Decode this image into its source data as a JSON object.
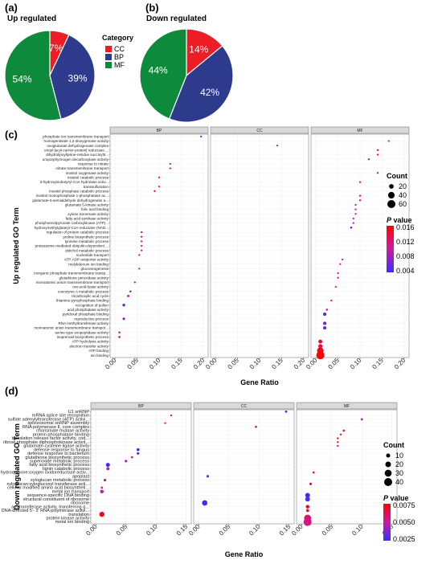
{
  "panels": {
    "a": {
      "label": "(a)",
      "title": "Up regulated"
    },
    "b": {
      "label": "(b)",
      "title": "Down regulated"
    },
    "c": {
      "label": "(c)"
    },
    "d": {
      "label": "(d)"
    }
  },
  "legend_category": {
    "title": "Category",
    "items": [
      {
        "label": "CC",
        "color": "#ee1c25"
      },
      {
        "label": "BP",
        "color": "#2e3a8c"
      },
      {
        "label": "MF",
        "color": "#0e8a3c"
      }
    ]
  },
  "chart_data": [
    {
      "type": "pie",
      "title": "Up regulated",
      "slices": [
        {
          "label": "CC",
          "value": 7,
          "text": "7%"
        },
        {
          "label": "BP",
          "value": 39,
          "text": "39%"
        },
        {
          "label": "MF",
          "value": 54,
          "text": "54%"
        }
      ]
    },
    {
      "type": "pie",
      "title": "Down regulated",
      "slices": [
        {
          "label": "CC",
          "value": 14,
          "text": "14%"
        },
        {
          "label": "BP",
          "value": 42,
          "text": "42%"
        },
        {
          "label": "MF",
          "value": 44,
          "text": "44%"
        }
      ]
    },
    {
      "type": "scatter",
      "ylabel": "Up regulated GO Term",
      "xlabel": "Gene Ratio",
      "facets": [
        "BP",
        "CC",
        "MF"
      ],
      "xlim": [
        0,
        0.2
      ],
      "xticks": [
        "0.00",
        "0.05",
        "0.10",
        "0.15",
        "0.20"
      ],
      "size_legend": {
        "title": "Count",
        "values": [
          20,
          40,
          60
        ]
      },
      "color_legend": {
        "title_bold": "P",
        "title_rest": " value",
        "ticks": [
          "0.016",
          "0.012",
          "0.008",
          "0.004"
        ],
        "range": [
          0.001,
          0.017
        ]
      },
      "terms": [
        "phosphate ion transmembrane transport",
        "homogentisate 1,2-dioxygenase activity",
        "oxoglutarate dehydrogenase complex",
        "enoyl-[acyl-carrier-protein] reductase ...",
        "dihydrolipoyllysine-residue succinyltr...",
        "uroporphyrinogen decarboxylase activity",
        "response to nitrate",
        "nitrate transmembrane transport",
        "inositol oxygenase activity",
        "inositol catabolic process",
        "3-hydroxyisobutyryl-CoA hydrolase activ...",
        "transsulfuration",
        "inositol phosphate catabolic process",
        "inositol monophosphate 1-phosphatase ac...",
        "glutamate-5-semialdehyde dehydrogenase a...",
        "glutamate 5-kinase activity",
        "folic acid binding",
        "xylose isomerase activity",
        "fatty acid synthase activity",
        "phosphoenolpyruvate carboxykinase (ATP)...",
        "hydroxymethylglutaryl-CoA reductase (NAD...",
        "regulation of protein catabolic process",
        "proline biosynthetic process",
        "tyrosine metabolic process",
        "proteasome-mediated ubiquitin-dependent ...",
        "dolichol metabolic process",
        "nucleotide transport",
        "ATP:ADP antiporter activity",
        "molybdenum ion binding",
        "gluconeogenesis",
        "inorganic phosphate transmembrane transp...",
        "glutathione peroxidase activity",
        "monoatomic anion transmembrane transport",
        "oxo-acid-lyase activity",
        "coenzyme A metabolic process",
        "tricarboxylic acid cycle",
        "thiamine pyrophosphate binding",
        "recognition of pollen",
        "acid phosphatase activity",
        "pyridoxal phosphate binding",
        "reproductive process",
        "RNA methyltransferase activity",
        "monoatomic anion transmembrane transpor...",
        "serine-type exopeptidase activity",
        "isoprenoid biosynthetic process",
        "ATP hydrolysis activity",
        "electron transfer activity",
        "ATP binding",
        "ion binding"
      ],
      "points": [
        {
          "facet": "BP",
          "term": 0,
          "x": 0.195,
          "count": 3,
          "p": 0.002
        },
        {
          "facet": "MF",
          "term": 1,
          "x": 0.165,
          "count": 3,
          "p": 0.011
        },
        {
          "facet": "CC",
          "term": 2,
          "x": 0.14,
          "count": 3,
          "p": 0.013
        },
        {
          "facet": "MF",
          "term": 3,
          "x": 0.14,
          "count": 3,
          "p": 0.015
        },
        {
          "facet": "MF",
          "term": 4,
          "x": 0.14,
          "count": 3,
          "p": 0.015
        },
        {
          "facet": "MF",
          "term": 5,
          "x": 0.12,
          "count": 3,
          "p": 0.014
        },
        {
          "facet": "BP",
          "term": 6,
          "x": 0.125,
          "count": 3,
          "p": 0.012
        },
        {
          "facet": "BP",
          "term": 7,
          "x": 0.125,
          "count": 3,
          "p": 0.012
        },
        {
          "facet": "MF",
          "term": 8,
          "x": 0.14,
          "count": 3,
          "p": 0.004
        },
        {
          "facet": "BP",
          "term": 9,
          "x": 0.1,
          "count": 3,
          "p": 0.011
        },
        {
          "facet": "MF",
          "term": 10,
          "x": 0.1,
          "count": 3,
          "p": 0.014
        },
        {
          "facet": "BP",
          "term": 11,
          "x": 0.1,
          "count": 3,
          "p": 0.011
        },
        {
          "facet": "BP",
          "term": 12,
          "x": 0.09,
          "count": 3,
          "p": 0.015
        },
        {
          "facet": "MF",
          "term": 13,
          "x": 0.1,
          "count": 3,
          "p": 0.015
        },
        {
          "facet": "MF",
          "term": 14,
          "x": 0.1,
          "count": 3,
          "p": 0.013
        },
        {
          "facet": "MF",
          "term": 15,
          "x": 0.09,
          "count": 3,
          "p": 0.011
        },
        {
          "facet": "MF",
          "term": 16,
          "x": 0.09,
          "count": 3,
          "p": 0.01
        },
        {
          "facet": "MF",
          "term": 17,
          "x": 0.09,
          "count": 3,
          "p": 0.009
        },
        {
          "facet": "MF",
          "term": 18,
          "x": 0.085,
          "count": 3,
          "p": 0.008
        },
        {
          "facet": "MF",
          "term": 19,
          "x": 0.085,
          "count": 3,
          "p": 0.007
        },
        {
          "facet": "MF",
          "term": 20,
          "x": 0.08,
          "count": 4,
          "p": 0.003
        },
        {
          "facet": "BP",
          "term": 21,
          "x": 0.06,
          "count": 3,
          "p": 0.014
        },
        {
          "facet": "BP",
          "term": 22,
          "x": 0.06,
          "count": 3,
          "p": 0.013
        },
        {
          "facet": "BP",
          "term": 23,
          "x": 0.06,
          "count": 3,
          "p": 0.012
        },
        {
          "facet": "BP",
          "term": 24,
          "x": 0.06,
          "count": 3,
          "p": 0.011
        },
        {
          "facet": "BP",
          "term": 25,
          "x": 0.06,
          "count": 3,
          "p": 0.009
        },
        {
          "facet": "BP",
          "term": 26,
          "x": 0.055,
          "count": 3,
          "p": 0.008
        },
        {
          "facet": "MF",
          "term": 27,
          "x": 0.06,
          "count": 3,
          "p": 0.008
        },
        {
          "facet": "MF",
          "term": 28,
          "x": 0.055,
          "count": 3,
          "p": 0.01
        },
        {
          "facet": "BP",
          "term": 29,
          "x": 0.055,
          "count": 3,
          "p": 0.011
        },
        {
          "facet": "MF",
          "term": 30,
          "x": 0.05,
          "count": 3,
          "p": 0.012
        },
        {
          "facet": "MF",
          "term": 31,
          "x": 0.05,
          "count": 3,
          "p": 0.011
        },
        {
          "facet": "BP",
          "term": 32,
          "x": 0.045,
          "count": 3,
          "p": 0.012
        },
        {
          "facet": "MF",
          "term": 33,
          "x": 0.045,
          "count": 3,
          "p": 0.013
        },
        {
          "facet": "BP",
          "term": 34,
          "x": 0.035,
          "count": 4,
          "p": 0.006
        },
        {
          "facet": "BP",
          "term": 35,
          "x": 0.03,
          "count": 5,
          "p": 0.008
        },
        {
          "facet": "MF",
          "term": 36,
          "x": 0.035,
          "count": 3,
          "p": 0.014
        },
        {
          "facet": "BP",
          "term": 37,
          "x": 0.02,
          "count": 7,
          "p": 0.003
        },
        {
          "facet": "MF",
          "term": 38,
          "x": 0.025,
          "count": 4,
          "p": 0.011
        },
        {
          "facet": "MF",
          "term": 39,
          "x": 0.02,
          "count": 10,
          "p": 0.002
        },
        {
          "facet": "BP",
          "term": 40,
          "x": 0.02,
          "count": 6,
          "p": 0.006
        },
        {
          "facet": "MF",
          "term": 41,
          "x": 0.02,
          "count": 10,
          "p": 0.004
        },
        {
          "facet": "MF",
          "term": 42,
          "x": 0.02,
          "count": 10,
          "p": 0.003
        },
        {
          "facet": "BP",
          "term": 43,
          "x": 0.01,
          "count": 4,
          "p": 0.009
        },
        {
          "facet": "BP",
          "term": 44,
          "x": 0.01,
          "count": 4,
          "p": 0.013
        },
        {
          "facet": "MF",
          "term": 45,
          "x": 0.01,
          "count": 14,
          "p": 0.015
        },
        {
          "facet": "MF",
          "term": 46,
          "x": 0.01,
          "count": 16,
          "p": 0.014
        },
        {
          "facet": "MF",
          "term": 47,
          "x": 0.01,
          "count": 40,
          "p": 0.016
        },
        {
          "facet": "MF",
          "term": 48,
          "x": 0.01,
          "count": 60,
          "p": 0.017
        }
      ]
    },
    {
      "type": "scatter",
      "ylabel": "Down regulated GO Term",
      "xlabel": "Gene Ratio",
      "facets": [
        "BP",
        "CC",
        "MF"
      ],
      "xlim": [
        0,
        0.15
      ],
      "xticks": [
        "0.00",
        "0.05",
        "0.10",
        "0.15"
      ],
      "size_legend": {
        "title": "Count",
        "values": [
          10,
          20,
          30,
          40
        ]
      },
      "color_legend": {
        "title_bold": "P",
        "title_rest": " value",
        "ticks": [
          "0.0075",
          "0.0050",
          "0.0025"
        ],
        "range": [
          0.001,
          0.0095
        ]
      },
      "terms": [
        "U1 snRNP",
        "mRNA splice site recognition",
        "sulfate adenylyltransferase (ATP) activi...",
        "spliceosomal snRNP assembly",
        "RNA polymerase II, core complex",
        "chorismate mutase activity",
        "protein phosphatase binding",
        "translation release factor activity, cod...",
        "ribose phosphate diphosphokinase activit...",
        "glutamate-cysteine ligase activity",
        "defense response to fungus",
        "defense response to bacterium",
        "glutathione biosynthetic process",
        "superoxide metabolic process",
        "fatty acid biosynthetic process",
        "lignin catabolic process",
        "hydroquinone:oxygen oxidoreductase activ...",
        "apoplast",
        "xyloglucan metabolic process",
        "xyloglucan:xyloglucosyl transferase acti...",
        "cellular modified amino acid biosyntheti...",
        "metal ion transport",
        "sequence-specific DNA binding",
        "structural constituent of ribosome",
        "ribosome",
        "acyltransferase activity, transferring g...",
        "DNA-directed 5'- 3' RNA polymerase activi...",
        "translation",
        "protein kinase activity",
        "metal ion binding"
      ],
      "points": [
        {
          "facet": "CC",
          "term": 0,
          "x": 0.145,
          "count": 3,
          "p": 0.001
        },
        {
          "facet": "BP",
          "term": 1,
          "x": 0.125,
          "count": 2,
          "p": 0.009
        },
        {
          "facet": "MF",
          "term": 2,
          "x": 0.1,
          "count": 3,
          "p": 0.004
        },
        {
          "facet": "BP",
          "term": 3,
          "x": 0.115,
          "count": 2,
          "p": 0.008
        },
        {
          "facet": "CC",
          "term": 4,
          "x": 0.095,
          "count": 3,
          "p": 0.006
        },
        {
          "facet": "MF",
          "term": 5,
          "x": 0.07,
          "count": 3,
          "p": 0.005
        },
        {
          "facet": "MF",
          "term": 6,
          "x": 0.065,
          "count": 2,
          "p": 0.008
        },
        {
          "facet": "MF",
          "term": 7,
          "x": 0.06,
          "count": 2,
          "p": 0.009
        },
        {
          "facet": "MF",
          "term": 8,
          "x": 0.06,
          "count": 2,
          "p": 0.008
        },
        {
          "facet": "MF",
          "term": 9,
          "x": 0.06,
          "count": 2,
          "p": 0.007
        },
        {
          "facet": "BP",
          "term": 10,
          "x": 0.07,
          "count": 5,
          "p": 0.001
        },
        {
          "facet": "BP",
          "term": 11,
          "x": 0.07,
          "count": 4,
          "p": 0.002
        },
        {
          "facet": "BP",
          "term": 12,
          "x": 0.06,
          "count": 3,
          "p": 0.006
        },
        {
          "facet": "BP",
          "term": 13,
          "x": 0.05,
          "count": 4,
          "p": 0.004
        },
        {
          "facet": "BP",
          "term": 14,
          "x": 0.02,
          "count": 10,
          "p": 0.001
        },
        {
          "facet": "BP",
          "term": 15,
          "x": 0.02,
          "count": 6,
          "p": 0.005
        },
        {
          "facet": "MF",
          "term": 16,
          "x": 0.02,
          "count": 3,
          "p": 0.006
        },
        {
          "facet": "CC",
          "term": 17,
          "x": 0.015,
          "count": 4,
          "p": 0.002
        },
        {
          "facet": "BP",
          "term": 18,
          "x": 0.015,
          "count": 4,
          "p": 0.008
        },
        {
          "facet": "MF",
          "term": 19,
          "x": 0.015,
          "count": 4,
          "p": 0.009
        },
        {
          "facet": "BP",
          "term": 20,
          "x": 0.01,
          "count": 3,
          "p": 0.006
        },
        {
          "facet": "BP",
          "term": 21,
          "x": 0.01,
          "count": 8,
          "p": 0.005
        },
        {
          "facet": "MF",
          "term": 22,
          "x": 0.01,
          "count": 14,
          "p": 0.001
        },
        {
          "facet": "MF",
          "term": 23,
          "x": 0.01,
          "count": 14,
          "p": 0.002
        },
        {
          "facet": "CC",
          "term": 24,
          "x": 0.01,
          "count": 18,
          "p": 0.001
        },
        {
          "facet": "MF",
          "term": 25,
          "x": 0.01,
          "count": 8,
          "p": 0.009
        },
        {
          "facet": "MF",
          "term": 26,
          "x": 0.01,
          "count": 6,
          "p": 0.008
        },
        {
          "facet": "BP",
          "term": 27,
          "x": 0.01,
          "count": 16,
          "p": 0.009
        },
        {
          "facet": "MF",
          "term": 28,
          "x": 0.01,
          "count": 30,
          "p": 0.007
        },
        {
          "facet": "MF",
          "term": 29,
          "x": 0.01,
          "count": 40,
          "p": 0.006
        }
      ]
    }
  ]
}
